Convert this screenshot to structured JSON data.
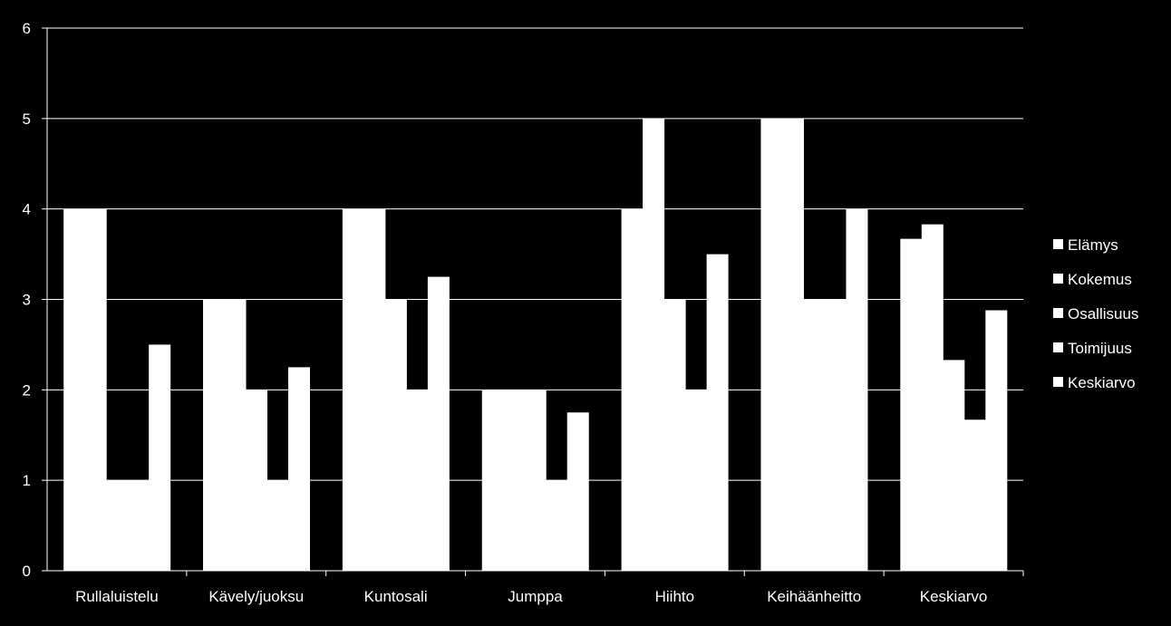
{
  "chart_data": {
    "type": "bar",
    "categories": [
      "Rullaluistelu",
      "Kävely/juoksu",
      "Kuntosali",
      "Jumppa",
      "Hiihto",
      "Keihäänheitto",
      "Keskiarvo"
    ],
    "series": [
      {
        "name": "Elämys",
        "values": [
          4,
          3,
          4,
          2,
          4,
          5,
          3.67
        ]
      },
      {
        "name": "Kokemus",
        "values": [
          4,
          3,
          4,
          2,
          5,
          5,
          3.83
        ]
      },
      {
        "name": "Osallisuus",
        "values": [
          1,
          2,
          3,
          2,
          3,
          3,
          2.33
        ]
      },
      {
        "name": "Toimijuus",
        "values": [
          1,
          1,
          2,
          1,
          2,
          3,
          1.67
        ]
      },
      {
        "name": "Keskiarvo",
        "values": [
          2.5,
          2.25,
          3.25,
          1.75,
          3.5,
          4,
          2.88
        ]
      }
    ],
    "y_ticks": [
      "0",
      "1",
      "2",
      "3",
      "4",
      "5",
      "6"
    ],
    "ylim": [
      0,
      6
    ],
    "grid": true,
    "legend_position": "right",
    "bar_color": "#ffffff",
    "background_color": "#000000",
    "grid_color": "#ffffff"
  }
}
